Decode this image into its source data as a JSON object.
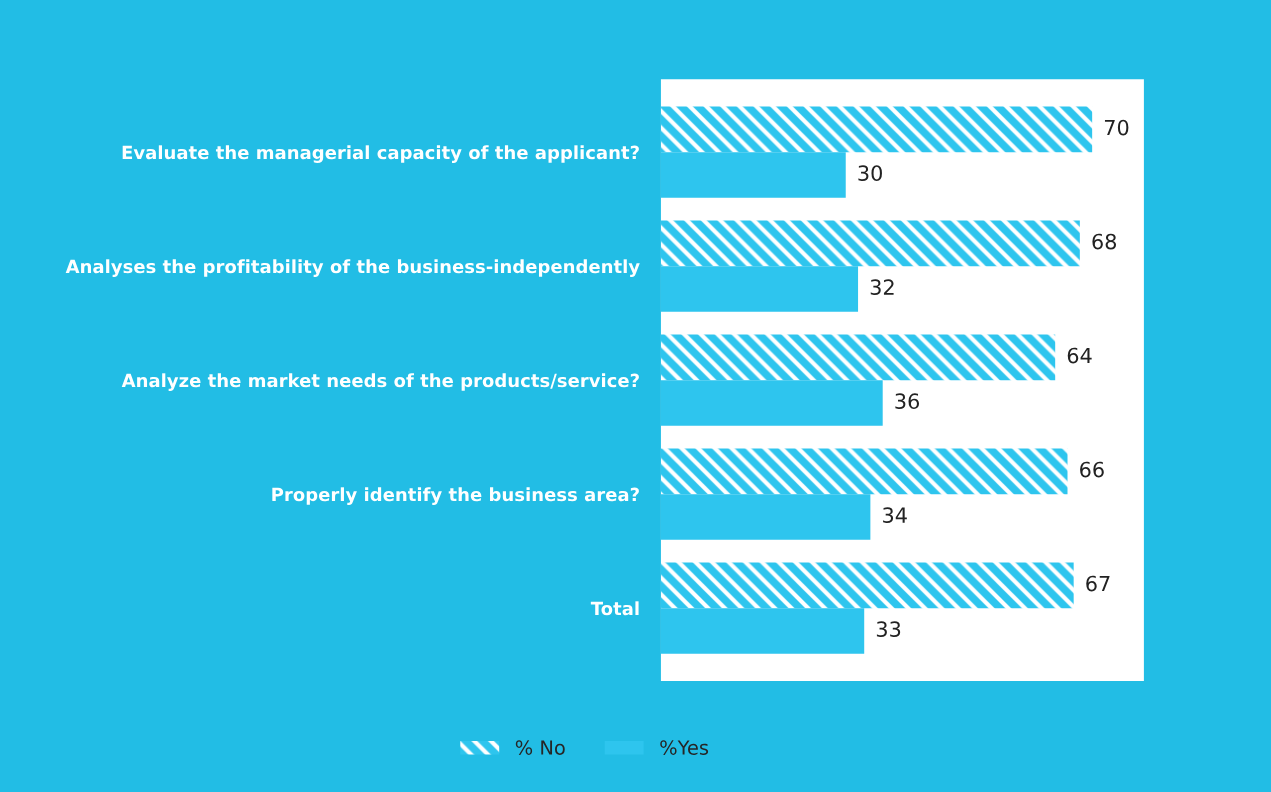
{
  "chart_data": {
    "type": "bar",
    "orientation": "horizontal",
    "categories": [
      "Evaluate the managerial capacity of the applicant?",
      "Analyses the profitability of the business-independently",
      "Analyze the market needs of the products/service?",
      "Properly identify the business area?",
      "Total"
    ],
    "series": [
      {
        "name": "% No",
        "color": "#2ec5ee",
        "values": [
          70,
          68,
          64,
          66,
          67
        ]
      },
      {
        "name": "%Yes",
        "color": "#2ec5ee",
        "values": [
          30,
          32,
          36,
          34,
          33
        ]
      }
    ],
    "data_labels": true,
    "tick_labels": "y",
    "grid": false,
    "legend": "bottom"
  }
}
